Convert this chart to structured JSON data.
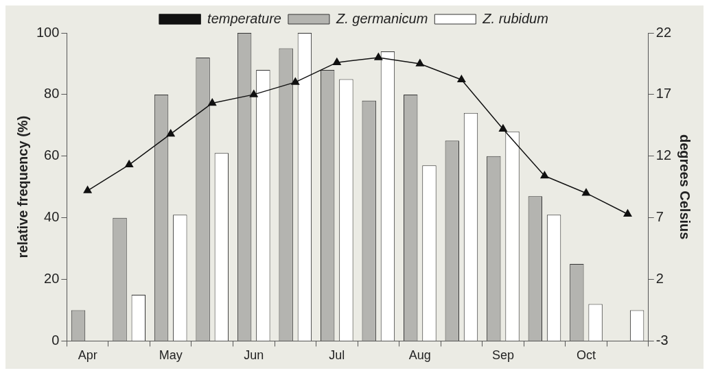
{
  "chart_data": {
    "type": "bar",
    "categories": [
      "Apr",
      null,
      "May",
      null,
      "Jun",
      null,
      "Jul",
      null,
      "Aug",
      null,
      "Sep",
      null,
      "Oct",
      null
    ],
    "ylabel": "relative frequency (%)",
    "y2label": "degrees Celsius",
    "ylim": [
      0,
      100
    ],
    "yticks": [
      0,
      20,
      40,
      60,
      80,
      100
    ],
    "y2lim": [
      -3,
      22
    ],
    "y2ticks": [
      -3,
      2,
      7,
      12,
      17,
      22
    ],
    "grid": false,
    "legend": "top",
    "series": [
      {
        "name": "Z. germanicum",
        "color": "#b4b4b0",
        "values": [
          10,
          40,
          80,
          92,
          100,
          95,
          88,
          78,
          80,
          65,
          60,
          47,
          25,
          null
        ]
      },
      {
        "name": "Z. rubidum",
        "color": "#ffffff",
        "values": [
          null,
          15,
          41,
          61,
          88,
          100,
          85,
          94,
          57,
          74,
          68,
          41,
          12,
          10
        ]
      },
      {
        "name": "temperature",
        "type": "line",
        "axis": "y2",
        "color": "#111111",
        "marker": "triangle",
        "values": [
          9.2,
          11.3,
          13.8,
          16.3,
          17,
          18,
          19.6,
          20,
          19.5,
          18.2,
          14.2,
          10.4,
          9,
          7.3
        ]
      }
    ]
  }
}
